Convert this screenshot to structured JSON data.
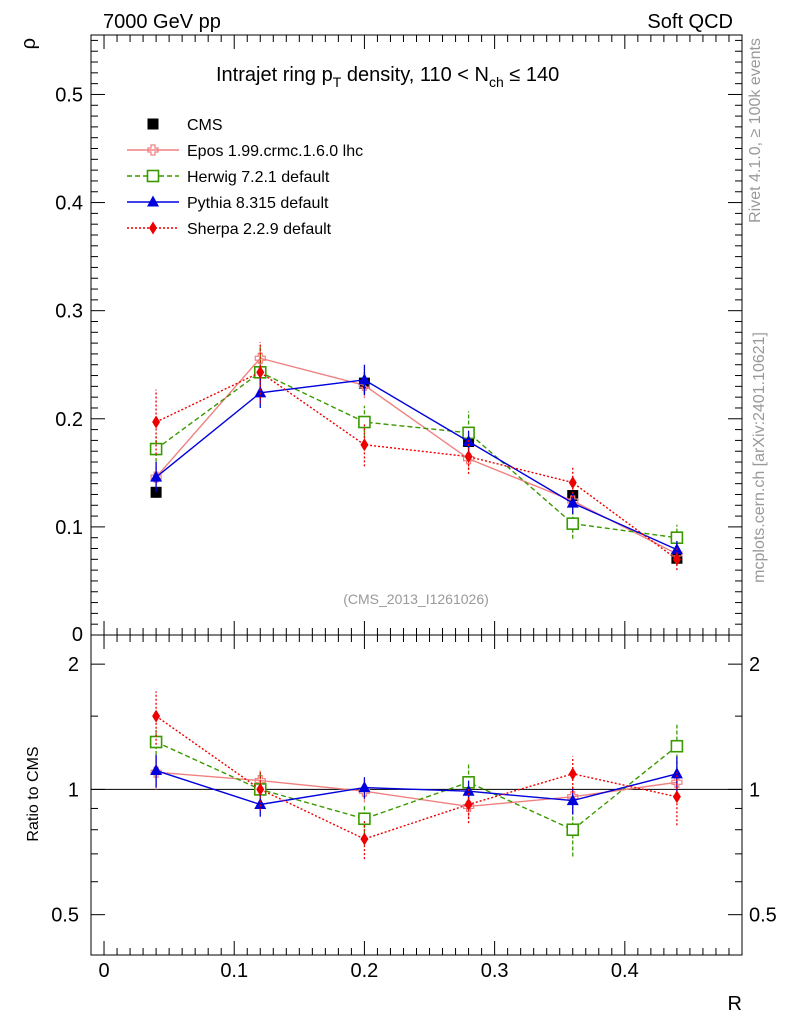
{
  "header": {
    "left": "7000 GeV pp",
    "right": "Soft QCD"
  },
  "side_labels": {
    "rivet": "Rivet 4.1.0, ≥ 100k events",
    "mcplots": "mcplots.cern.ch [arXiv:2401.10621]"
  },
  "analysis_id": "(CMS_2013_I1261026)",
  "colors": {
    "cms": "#000000",
    "epos": "#f08080",
    "herwig": "#3a9a00",
    "pythia": "#0000dd",
    "sherpa": "#ee0000"
  },
  "chart_data": [
    {
      "type": "line",
      "title": "Intrajet ring p_T density, 110 < N_ch ≤ 140",
      "title_parts": {
        "pre": "Intrajet ring p",
        "pt_sub": "T",
        "mid": " density, 110 < N",
        "nch_sub": "ch",
        "post": " ≤ 140"
      },
      "ylabel": "ρ",
      "xlabel": "R",
      "xlim": [
        -0.01,
        0.49
      ],
      "ylim": [
        0,
        0.555
      ],
      "yticks": [
        0.1,
        0.2,
        0.3,
        0.4,
        0.5
      ],
      "ytick_labels": [
        "0.1",
        "0.2",
        "0.3",
        "0.4",
        "0.5"
      ],
      "ytick_zero_label": "0",
      "x": [
        0.04,
        0.12,
        0.2,
        0.28,
        0.36,
        0.44
      ],
      "series": [
        {
          "key": "cms",
          "name": "CMS",
          "marker": "square-filled",
          "line": "none",
          "values": [
            0.132,
            0.243,
            0.233,
            0.179,
            0.129,
            0.071
          ],
          "errors": [
            0.005,
            0.01,
            0.01,
            0.006,
            0.005,
            0.005
          ]
        },
        {
          "key": "epos",
          "name": "Epos 1.99.crmc.1.6.0 lhc",
          "marker": "cross-open",
          "line": "solid",
          "values": [
            0.146,
            0.256,
            0.231,
            0.163,
            0.124,
            0.075
          ],
          "errors": [
            0.01,
            0.012,
            0.012,
            0.01,
            0.008,
            0.006
          ]
        },
        {
          "key": "herwig",
          "name": "Herwig 7.2.1 default",
          "marker": "square-open",
          "line": "dashed",
          "values": [
            0.172,
            0.243,
            0.197,
            0.187,
            0.103,
            0.09
          ],
          "errors": [
            0.012,
            0.025,
            0.015,
            0.02,
            0.014,
            0.012
          ]
        },
        {
          "key": "pythia",
          "name": "Pythia 8.315 default",
          "marker": "triangle-filled",
          "line": "solid",
          "values": [
            0.146,
            0.224,
            0.236,
            0.179,
            0.122,
            0.079
          ],
          "errors": [
            0.014,
            0.014,
            0.014,
            0.01,
            0.01,
            0.008
          ]
        },
        {
          "key": "sherpa",
          "name": "Sherpa 2.2.9 default",
          "marker": "diamond-filled",
          "line": "dotted",
          "values": [
            0.197,
            0.243,
            0.176,
            0.165,
            0.141,
            0.07
          ],
          "errors": [
            0.03,
            0.028,
            0.02,
            0.016,
            0.014,
            0.01
          ]
        }
      ]
    },
    {
      "type": "line",
      "ylabel": "Ratio to CMS",
      "xlabel": "R",
      "ylim": [
        0.4,
        2.35
      ],
      "yticks": [
        0.5,
        1,
        2
      ],
      "ytick_labels": [
        "0.5",
        "1",
        "2"
      ],
      "xticks": [
        0,
        0.1,
        0.2,
        0.3,
        0.4
      ],
      "xtick_labels": [
        "0",
        "0.1",
        "0.2",
        "0.3",
        "0.4"
      ],
      "x": [
        0.04,
        0.12,
        0.2,
        0.28,
        0.36,
        0.44
      ],
      "reference_line": 1,
      "series": [
        {
          "key": "epos",
          "name": "Epos 1.99.crmc.1.6.0 lhc",
          "values": [
            1.1,
            1.05,
            0.99,
            0.91,
            0.96,
            1.04
          ],
          "errors": [
            0.1,
            0.06,
            0.06,
            0.06,
            0.06,
            0.09
          ]
        },
        {
          "key": "herwig",
          "name": "Herwig 7.2.1 default",
          "values": [
            1.3,
            1.0,
            0.85,
            1.04,
            0.8,
            1.27
          ],
          "errors": [
            0.09,
            0.1,
            0.07,
            0.12,
            0.11,
            0.16
          ]
        },
        {
          "key": "pythia",
          "name": "Pythia 8.315 default",
          "values": [
            1.11,
            0.92,
            1.01,
            0.99,
            0.94,
            1.09
          ],
          "errors": [
            0.1,
            0.06,
            0.06,
            0.06,
            0.07,
            0.11
          ]
        },
        {
          "key": "sherpa",
          "name": "Sherpa 2.2.9 default",
          "values": [
            1.5,
            1.0,
            0.76,
            0.92,
            1.09,
            0.96
          ],
          "errors": [
            0.22,
            0.11,
            0.08,
            0.09,
            0.11,
            0.14
          ]
        }
      ]
    }
  ]
}
